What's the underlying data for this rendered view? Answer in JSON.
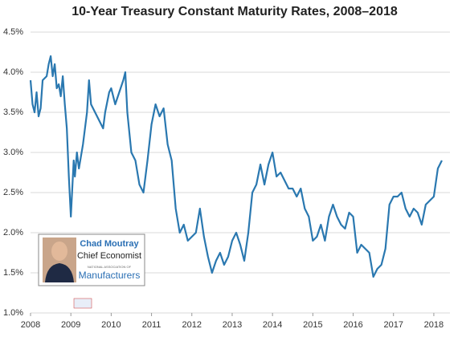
{
  "chart_data": {
    "type": "line",
    "title": "10-Year Treasury Constant Maturity Rates, 2008–2018",
    "x": [
      2008.0,
      2008.05,
      2008.1,
      2008.15,
      2008.2,
      2008.25,
      2008.3,
      2008.4,
      2008.45,
      2008.5,
      2008.55,
      2008.6,
      2008.65,
      2008.7,
      2008.75,
      2008.8,
      2008.85,
      2008.9,
      2008.95,
      2009.0,
      2009.02,
      2009.07,
      2009.1,
      2009.15,
      2009.2,
      2009.3,
      2009.4,
      2009.45,
      2009.5,
      2009.6,
      2009.7,
      2009.8,
      2009.85,
      2009.95,
      2010.0,
      2010.1,
      2010.2,
      2010.3,
      2010.35,
      2010.4,
      2010.5,
      2010.6,
      2010.7,
      2010.8,
      2010.9,
      2011.0,
      2011.1,
      2011.2,
      2011.3,
      2011.4,
      2011.5,
      2011.6,
      2011.7,
      2011.8,
      2011.9,
      2012.0,
      2012.1,
      2012.2,
      2012.3,
      2012.4,
      2012.5,
      2012.6,
      2012.7,
      2012.8,
      2012.9,
      2013.0,
      2013.1,
      2013.2,
      2013.3,
      2013.4,
      2013.5,
      2013.6,
      2013.7,
      2013.8,
      2013.9,
      2014.0,
      2014.1,
      2014.2,
      2014.3,
      2014.4,
      2014.5,
      2014.6,
      2014.7,
      2014.8,
      2014.9,
      2015.0,
      2015.1,
      2015.2,
      2015.3,
      2015.4,
      2015.5,
      2015.6,
      2015.7,
      2015.8,
      2015.9,
      2016.0,
      2016.1,
      2016.2,
      2016.3,
      2016.4,
      2016.5,
      2016.6,
      2016.7,
      2016.8,
      2016.9,
      2017.0,
      2017.1,
      2017.2,
      2017.3,
      2017.4,
      2017.5,
      2017.6,
      2017.7,
      2017.8,
      2017.9,
      2018.0,
      2018.1,
      2018.15,
      2018.2
    ],
    "values": [
      3.9,
      3.6,
      3.5,
      3.75,
      3.45,
      3.55,
      3.9,
      3.95,
      4.1,
      4.2,
      3.95,
      4.1,
      3.8,
      3.85,
      3.7,
      3.95,
      3.6,
      3.3,
      2.7,
      2.2,
      2.4,
      2.9,
      2.7,
      3.0,
      2.8,
      3.1,
      3.5,
      3.9,
      3.6,
      3.5,
      3.4,
      3.3,
      3.5,
      3.75,
      3.8,
      3.6,
      3.75,
      3.9,
      4.0,
      3.5,
      3.0,
      2.9,
      2.6,
      2.5,
      2.9,
      3.35,
      3.6,
      3.45,
      3.55,
      3.1,
      2.9,
      2.3,
      2.0,
      2.1,
      1.9,
      1.95,
      2.0,
      2.3,
      1.95,
      1.7,
      1.5,
      1.65,
      1.75,
      1.6,
      1.7,
      1.9,
      2.0,
      1.85,
      1.65,
      2.0,
      2.5,
      2.6,
      2.85,
      2.6,
      2.85,
      3.0,
      2.7,
      2.75,
      2.65,
      2.55,
      2.55,
      2.45,
      2.55,
      2.3,
      2.2,
      1.9,
      1.95,
      2.1,
      1.9,
      2.2,
      2.35,
      2.2,
      2.1,
      2.05,
      2.25,
      2.2,
      1.75,
      1.85,
      1.8,
      1.75,
      1.45,
      1.55,
      1.6,
      1.8,
      2.35,
      2.45,
      2.45,
      2.5,
      2.3,
      2.2,
      2.3,
      2.25,
      2.1,
      2.35,
      2.4,
      2.45,
      2.8,
      2.85,
      2.9
    ],
    "color": "#2a78b0",
    "xlim": [
      2008,
      2018.4
    ],
    "xticks": [
      2008,
      2009,
      2010,
      2011,
      2012,
      2013,
      2014,
      2015,
      2016,
      2017,
      2018
    ],
    "ylim": [
      1.0,
      4.5
    ],
    "yticks": [
      {
        "value": 1.0,
        "label": "1.0%"
      },
      {
        "value": 1.5,
        "label": "1.5%"
      },
      {
        "value": 2.0,
        "label": "2.0%"
      },
      {
        "value": 2.5,
        "label": "2.5%"
      },
      {
        "value": 3.0,
        "label": "3.0%"
      },
      {
        "value": 3.5,
        "label": "3.5%"
      },
      {
        "value": 4.0,
        "label": "4.0%"
      },
      {
        "value": 4.5,
        "label": "4.5%"
      }
    ],
    "grid": true,
    "annotations": [
      "Chad Moutray",
      "Chief Economist",
      "NATIONAL ASSOCIATION OF",
      "Manufacturers"
    ]
  }
}
